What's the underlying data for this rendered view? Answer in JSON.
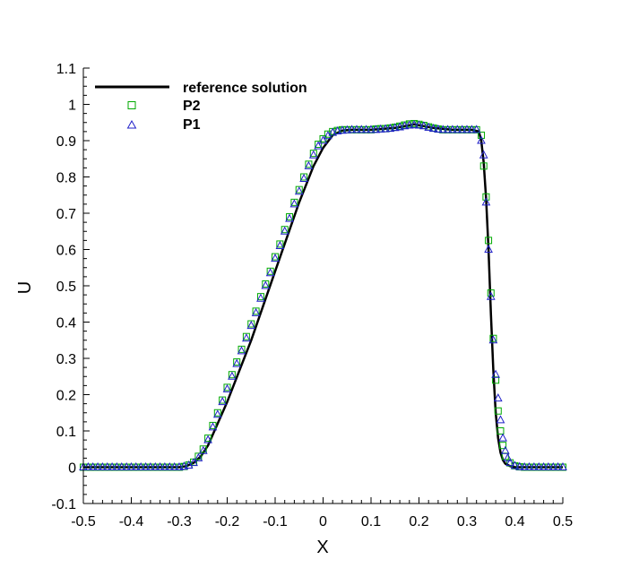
{
  "chart_data": {
    "type": "line",
    "xlabel": "X",
    "ylabel": "U",
    "xlim": [
      -0.5,
      0.5
    ],
    "ylim": [
      -0.1,
      1.1
    ],
    "xticks": [
      "-0.5",
      "-0.4",
      "-0.3",
      "-0.2",
      "-0.1",
      "0",
      "0.1",
      "0.2",
      "0.3",
      "0.4",
      "0.5"
    ],
    "yticks": [
      "-0.1",
      "0",
      "0.1",
      "0.2",
      "0.3",
      "0.4",
      "0.5",
      "0.6",
      "0.7",
      "0.8",
      "0.9",
      "1",
      "1.1"
    ],
    "grid": false,
    "legend_position": "top-left",
    "series": [
      {
        "name": "reference solution",
        "style": "line",
        "color": "#000000",
        "x": [
          -0.5,
          -0.3,
          -0.285,
          -0.27,
          -0.255,
          -0.24,
          -0.2,
          -0.15,
          -0.1,
          -0.05,
          -0.02,
          0.0,
          0.02,
          0.04,
          0.06,
          0.1,
          0.15,
          0.19,
          0.23,
          0.27,
          0.31,
          0.325,
          0.33,
          0.335,
          0.34,
          0.345,
          0.35,
          0.355,
          0.36,
          0.365,
          0.37,
          0.375,
          0.38,
          0.39,
          0.4,
          0.5
        ],
        "y": [
          0.0,
          0.0,
          0.003,
          0.012,
          0.03,
          0.06,
          0.18,
          0.35,
          0.54,
          0.73,
          0.83,
          0.88,
          0.915,
          0.928,
          0.93,
          0.93,
          0.935,
          0.945,
          0.935,
          0.93,
          0.93,
          0.925,
          0.9,
          0.84,
          0.74,
          0.6,
          0.42,
          0.27,
          0.15,
          0.08,
          0.04,
          0.02,
          0.01,
          0.003,
          0.0,
          0.0
        ]
      },
      {
        "name": "P2",
        "style": "marker",
        "marker": "square",
        "color": "#00aa00",
        "x": [
          -0.5,
          -0.49,
          -0.48,
          -0.47,
          -0.46,
          -0.45,
          -0.44,
          -0.43,
          -0.42,
          -0.41,
          -0.4,
          -0.39,
          -0.38,
          -0.37,
          -0.36,
          -0.35,
          -0.34,
          -0.33,
          -0.32,
          -0.31,
          -0.3,
          -0.29,
          -0.28,
          -0.27,
          -0.26,
          -0.25,
          -0.24,
          -0.23,
          -0.22,
          -0.21,
          -0.2,
          -0.19,
          -0.18,
          -0.17,
          -0.16,
          -0.15,
          -0.14,
          -0.13,
          -0.12,
          -0.11,
          -0.1,
          -0.09,
          -0.08,
          -0.07,
          -0.06,
          -0.05,
          -0.04,
          -0.03,
          -0.02,
          -0.01,
          0.0,
          0.01,
          0.02,
          0.03,
          0.04,
          0.05,
          0.06,
          0.07,
          0.08,
          0.09,
          0.1,
          0.11,
          0.12,
          0.13,
          0.14,
          0.15,
          0.16,
          0.17,
          0.18,
          0.19,
          0.2,
          0.21,
          0.22,
          0.23,
          0.24,
          0.25,
          0.26,
          0.27,
          0.28,
          0.29,
          0.3,
          0.31,
          0.32,
          0.33,
          0.335,
          0.34,
          0.345,
          0.35,
          0.355,
          0.36,
          0.365,
          0.37,
          0.375,
          0.38,
          0.39,
          0.4,
          0.41,
          0.42,
          0.43,
          0.44,
          0.45,
          0.46,
          0.47,
          0.48,
          0.49,
          0.5
        ],
        "y": [
          0.0,
          0.0,
          0.0,
          0.0,
          0.0,
          0.0,
          0.0,
          0.0,
          0.0,
          0.0,
          0.0,
          0.0,
          0.0,
          0.0,
          0.0,
          0.0,
          0.0,
          0.0,
          0.0,
          0.0,
          0.0,
          0.002,
          0.006,
          0.014,
          0.03,
          0.05,
          0.08,
          0.115,
          0.15,
          0.185,
          0.22,
          0.255,
          0.29,
          0.325,
          0.36,
          0.395,
          0.43,
          0.47,
          0.505,
          0.54,
          0.58,
          0.615,
          0.655,
          0.69,
          0.73,
          0.765,
          0.8,
          0.835,
          0.865,
          0.89,
          0.905,
          0.918,
          0.925,
          0.928,
          0.93,
          0.93,
          0.93,
          0.93,
          0.93,
          0.93,
          0.93,
          0.932,
          0.933,
          0.933,
          0.935,
          0.937,
          0.94,
          0.943,
          0.946,
          0.947,
          0.945,
          0.942,
          0.938,
          0.935,
          0.932,
          0.93,
          0.93,
          0.93,
          0.93,
          0.93,
          0.93,
          0.93,
          0.93,
          0.915,
          0.83,
          0.745,
          0.625,
          0.48,
          0.355,
          0.24,
          0.155,
          0.1,
          0.06,
          0.03,
          0.012,
          0.004,
          0.001,
          0.0,
          0.0,
          0.0,
          0.0,
          0.0,
          0.0,
          0.0,
          0.0,
          0.0
        ]
      },
      {
        "name": "P1",
        "style": "marker",
        "marker": "triangle",
        "color": "#2020c8",
        "x": [
          -0.5,
          -0.49,
          -0.48,
          -0.47,
          -0.46,
          -0.45,
          -0.44,
          -0.43,
          -0.42,
          -0.41,
          -0.4,
          -0.39,
          -0.38,
          -0.37,
          -0.36,
          -0.35,
          -0.34,
          -0.33,
          -0.32,
          -0.31,
          -0.3,
          -0.29,
          -0.28,
          -0.27,
          -0.26,
          -0.25,
          -0.24,
          -0.23,
          -0.22,
          -0.21,
          -0.2,
          -0.19,
          -0.18,
          -0.17,
          -0.16,
          -0.15,
          -0.14,
          -0.13,
          -0.12,
          -0.11,
          -0.1,
          -0.09,
          -0.08,
          -0.07,
          -0.06,
          -0.05,
          -0.04,
          -0.03,
          -0.02,
          -0.01,
          0.0,
          0.01,
          0.02,
          0.03,
          0.04,
          0.05,
          0.06,
          0.07,
          0.08,
          0.09,
          0.1,
          0.11,
          0.12,
          0.13,
          0.14,
          0.15,
          0.16,
          0.17,
          0.18,
          0.19,
          0.2,
          0.21,
          0.22,
          0.23,
          0.24,
          0.25,
          0.26,
          0.27,
          0.28,
          0.29,
          0.3,
          0.31,
          0.32,
          0.33,
          0.335,
          0.34,
          0.345,
          0.35,
          0.355,
          0.36,
          0.365,
          0.37,
          0.375,
          0.38,
          0.385,
          0.39,
          0.4,
          0.41,
          0.42,
          0.43,
          0.44,
          0.45,
          0.46,
          0.47,
          0.48,
          0.49,
          0.5
        ],
        "y": [
          0.0,
          0.0,
          0.0,
          0.0,
          0.0,
          0.0,
          0.0,
          0.0,
          0.0,
          0.0,
          0.0,
          0.0,
          0.0,
          0.0,
          0.0,
          0.0,
          0.0,
          0.0,
          0.0,
          0.0,
          0.0,
          0.002,
          0.005,
          0.012,
          0.025,
          0.045,
          0.075,
          0.11,
          0.145,
          0.18,
          0.215,
          0.25,
          0.285,
          0.32,
          0.355,
          0.39,
          0.425,
          0.465,
          0.5,
          0.535,
          0.575,
          0.61,
          0.65,
          0.685,
          0.725,
          0.76,
          0.795,
          0.83,
          0.86,
          0.885,
          0.9,
          0.913,
          0.922,
          0.926,
          0.928,
          0.929,
          0.93,
          0.93,
          0.93,
          0.93,
          0.93,
          0.93,
          0.931,
          0.932,
          0.933,
          0.935,
          0.937,
          0.94,
          0.942,
          0.943,
          0.942,
          0.94,
          0.936,
          0.933,
          0.931,
          0.93,
          0.93,
          0.93,
          0.93,
          0.93,
          0.93,
          0.93,
          0.93,
          0.9,
          0.86,
          0.73,
          0.6,
          0.47,
          0.35,
          0.255,
          0.19,
          0.13,
          0.08,
          0.045,
          0.025,
          0.012,
          0.004,
          0.001,
          0.0,
          0.0,
          0.0,
          0.0,
          0.0,
          0.0,
          0.0,
          0.0,
          0.0
        ]
      }
    ]
  }
}
